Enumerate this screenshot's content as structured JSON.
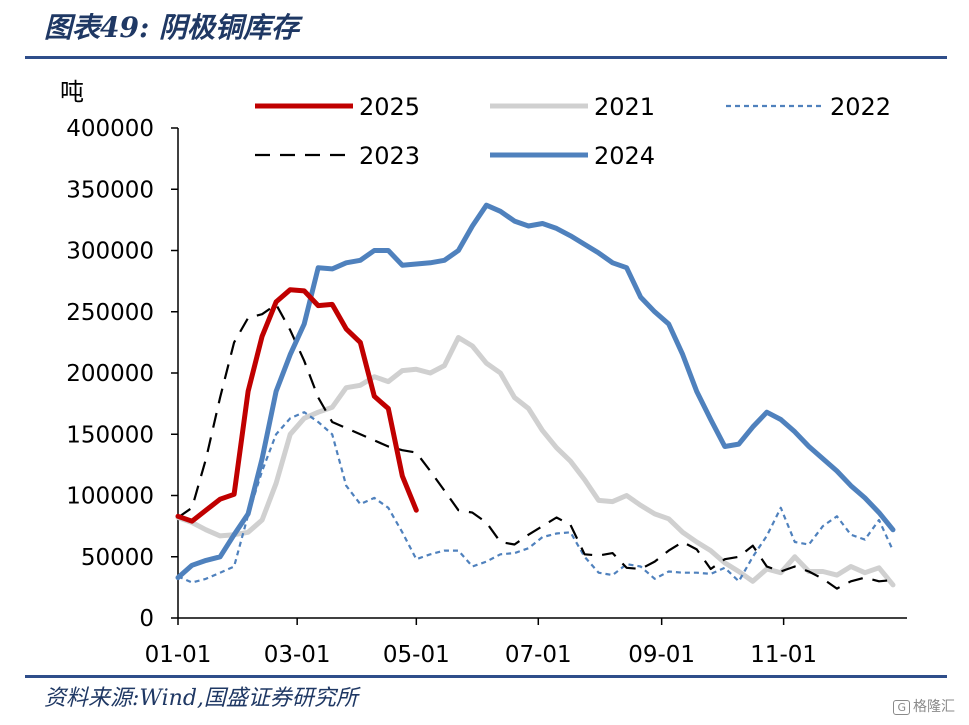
{
  "header": {
    "title": "图表49:  阴极铜库存"
  },
  "footer": {
    "source": "资料来源:Wind,国盛证券研究所",
    "watermark_text": "格隆汇",
    "watermark_logo": "G"
  },
  "colors": {
    "s2025": "#c00000",
    "s2021": "#d0d0d0",
    "s2022": "#4f81bd",
    "s2023": "#000000",
    "s2024": "#4f81bd",
    "rule": "#2f4e8a"
  },
  "chart_data": {
    "type": "line",
    "title": "阴极铜库存",
    "ylabel": "吨",
    "xlabel": "",
    "ylim": [
      0,
      400000
    ],
    "yticks": [
      0,
      50000,
      100000,
      150000,
      200000,
      250000,
      300000,
      350000,
      400000
    ],
    "xlim": [
      1,
      53
    ],
    "xticks": [
      {
        "label": "01-01",
        "x": 1
      },
      {
        "label": "03-01",
        "x": 9.5
      },
      {
        "label": "05-01",
        "x": 18
      },
      {
        "label": "07-01",
        "x": 26.7
      },
      {
        "label": "09-01",
        "x": 35.5
      },
      {
        "label": "11-01",
        "x": 44.2
      }
    ],
    "legend_position": "top",
    "series": [
      {
        "name": "2025",
        "style": "solid-thick",
        "x": [
          1,
          2,
          3,
          4,
          5,
          6,
          7,
          8,
          9,
          10,
          11,
          12,
          13,
          14,
          15,
          16,
          17,
          18
        ],
        "values": [
          83000,
          79000,
          88000,
          97000,
          101000,
          185000,
          230000,
          258000,
          268000,
          267000,
          255000,
          256000,
          236000,
          225000,
          181000,
          171000,
          116000,
          88000
        ]
      },
      {
        "name": "2021",
        "style": "solid-light",
        "x": [
          1,
          2,
          3,
          4,
          5,
          6,
          7,
          8,
          9,
          10,
          11,
          12,
          13,
          14,
          15,
          16,
          17,
          18,
          19,
          20,
          21,
          22,
          23,
          24,
          25,
          26,
          27,
          28,
          29,
          30,
          31,
          32,
          33,
          34,
          35,
          36,
          37,
          38,
          39,
          40,
          41,
          42,
          43,
          44,
          45,
          46,
          47,
          48,
          49,
          50,
          51,
          52
        ],
        "values": [
          82000,
          78000,
          72000,
          67000,
          68000,
          70000,
          80000,
          110000,
          150000,
          163000,
          168000,
          172000,
          188000,
          190000,
          197000,
          193000,
          202000,
          203000,
          200000,
          206000,
          229000,
          222000,
          208000,
          200000,
          180000,
          171000,
          153000,
          139000,
          128000,
          113000,
          96000,
          95000,
          100000,
          92000,
          85000,
          81000,
          70000,
          62000,
          55000,
          45000,
          38000,
          30000,
          40000,
          37000,
          50000,
          38000,
          38000,
          35000,
          42000,
          37000,
          41000,
          27000
        ]
      },
      {
        "name": "2022",
        "style": "dotted",
        "x": [
          1,
          2,
          3,
          4,
          5,
          6,
          7,
          8,
          9,
          10,
          11,
          12,
          13,
          14,
          15,
          16,
          17,
          18,
          19,
          20,
          21,
          22,
          23,
          24,
          25,
          26,
          27,
          28,
          29,
          30,
          31,
          32,
          33,
          34,
          35,
          36,
          37,
          38,
          39,
          40,
          41,
          42,
          43,
          44,
          45,
          46,
          47,
          48,
          49,
          50,
          51,
          52
        ],
        "values": [
          34000,
          29000,
          32000,
          37000,
          42000,
          84000,
          120000,
          150000,
          163000,
          168000,
          160000,
          150000,
          108000,
          93000,
          98000,
          90000,
          70000,
          48000,
          52000,
          55000,
          55000,
          42000,
          46000,
          52000,
          53000,
          57000,
          66000,
          69000,
          70000,
          50000,
          37000,
          35000,
          44000,
          42000,
          32000,
          38000,
          37000,
          37000,
          36000,
          41000,
          30000,
          50000,
          67000,
          90000,
          62000,
          60000,
          75000,
          83000,
          68000,
          64000,
          80000,
          55000
        ]
      },
      {
        "name": "2023",
        "style": "dashed",
        "x": [
          1,
          2,
          3,
          4,
          5,
          6,
          7,
          8,
          9,
          10,
          11,
          12,
          13,
          14,
          15,
          16,
          17,
          18,
          19,
          20,
          21,
          22,
          23,
          24,
          25,
          26,
          27,
          28,
          29,
          30,
          31,
          32,
          33,
          34,
          35,
          36,
          37,
          38,
          39,
          40,
          41,
          42,
          43,
          44,
          45,
          46,
          47,
          48,
          49,
          50,
          51,
          52
        ],
        "values": [
          82000,
          90000,
          130000,
          180000,
          225000,
          245000,
          248000,
          256000,
          235000,
          210000,
          180000,
          160000,
          155000,
          150000,
          145000,
          140000,
          137000,
          135000,
          120000,
          104000,
          88000,
          86000,
          78000,
          62000,
          60000,
          68000,
          75000,
          82000,
          76000,
          52000,
          51000,
          53000,
          41000,
          40000,
          46000,
          55000,
          62000,
          56000,
          40000,
          48000,
          50000,
          59000,
          42000,
          38000,
          42000,
          38000,
          32000,
          24000,
          30000,
          33000,
          30000,
          31000
        ]
      },
      {
        "name": "2024",
        "style": "solid-thick",
        "x": [
          1,
          2,
          3,
          4,
          5,
          6,
          7,
          8,
          9,
          10,
          11,
          12,
          13,
          14,
          15,
          16,
          17,
          18,
          19,
          20,
          21,
          22,
          23,
          24,
          25,
          26,
          27,
          28,
          29,
          30,
          31,
          32,
          33,
          34,
          35,
          36,
          37,
          38,
          39,
          40,
          41,
          42,
          43,
          44,
          45,
          46,
          47,
          48,
          49,
          50,
          51,
          52
        ],
        "values": [
          33000,
          43000,
          47000,
          50000,
          68000,
          85000,
          130000,
          185000,
          215000,
          240000,
          286000,
          285000,
          290000,
          292000,
          300000,
          300000,
          288000,
          289000,
          290000,
          292000,
          300000,
          320000,
          337000,
          332000,
          324000,
          320000,
          322000,
          318000,
          312000,
          305000,
          298000,
          290000,
          286000,
          262000,
          250000,
          240000,
          215000,
          185000,
          162000,
          140000,
          142000,
          156000,
          168000,
          162000,
          152000,
          140000,
          130000,
          120000,
          108000,
          98000,
          86000,
          72000
        ]
      }
    ]
  }
}
